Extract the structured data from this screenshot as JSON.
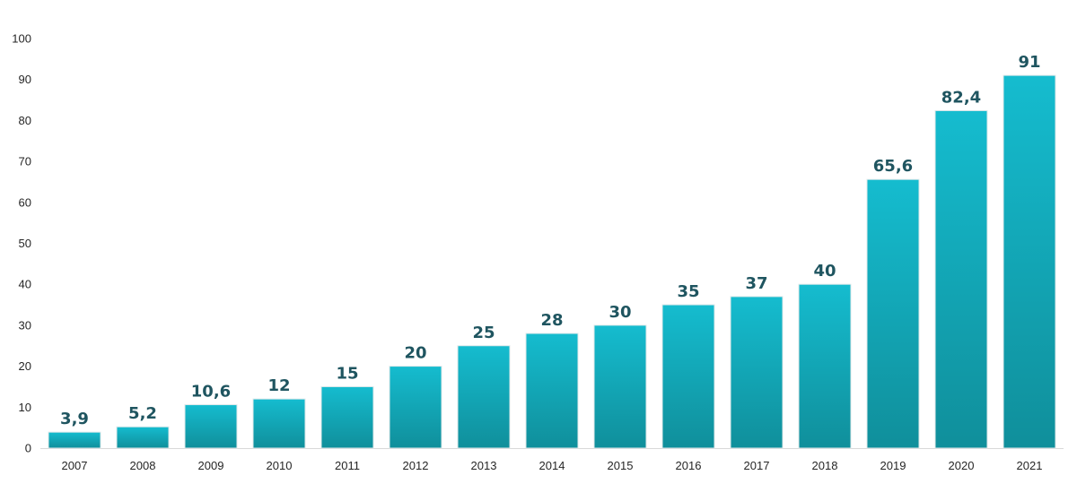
{
  "chart_data": {
    "type": "bar",
    "categories": [
      "2007",
      "2008",
      "2009",
      "2010",
      "2011",
      "2012",
      "2013",
      "2014",
      "2015",
      "2016",
      "2017",
      "2018",
      "2019",
      "2020",
      "2021"
    ],
    "values": [
      3.9,
      5.2,
      10.6,
      12,
      15,
      20,
      25,
      28,
      30,
      35,
      37,
      40,
      65.6,
      82.4,
      91
    ],
    "data_labels": [
      "3,9",
      "5,2",
      "10,6",
      "12",
      "15",
      "20",
      "25",
      "28",
      "30",
      "35",
      "37",
      "40",
      "65,6",
      "82,4",
      "91"
    ],
    "title": "",
    "xlabel": "",
    "ylabel": "",
    "ylim": [
      0,
      100
    ],
    "yticks": [
      0,
      10,
      20,
      30,
      40,
      50,
      60,
      70,
      80,
      90,
      100
    ],
    "ytick_labels": [
      "0",
      "10",
      "20",
      "30",
      "40",
      "50",
      "60",
      "70",
      "80",
      "90",
      "100"
    ],
    "grid": false,
    "legend": "none",
    "colors": {
      "bar_top": "#15bccf",
      "bar_bottom": "#108f9b",
      "data_label": "#1f5560",
      "tick_label": "#262626",
      "axis": "#d9d9d9"
    }
  }
}
